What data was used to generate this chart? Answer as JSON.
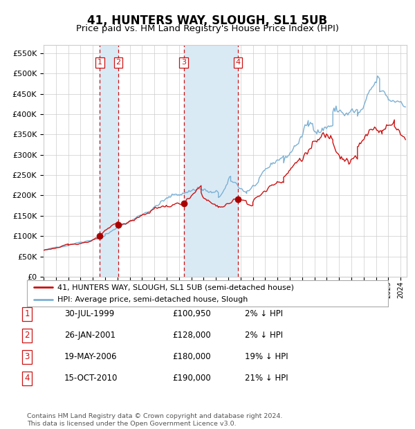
{
  "title": "41, HUNTERS WAY, SLOUGH, SL1 5UB",
  "subtitle": "Price paid vs. HM Land Registry's House Price Index (HPI)",
  "title_fontsize": 12,
  "subtitle_fontsize": 9.5,
  "ylabel_ticks": [
    "£0",
    "£50K",
    "£100K",
    "£150K",
    "£200K",
    "£250K",
    "£300K",
    "£350K",
    "£400K",
    "£450K",
    "£500K",
    "£550K"
  ],
  "ylabel_values": [
    0,
    50000,
    100000,
    150000,
    200000,
    250000,
    300000,
    350000,
    400000,
    450000,
    500000,
    550000
  ],
  "ylim": [
    0,
    570000
  ],
  "xlim_start": 1995.0,
  "xlim_end": 2024.5,
  "hpi_color": "#7ab0d4",
  "price_color": "#cc1111",
  "sale_marker_color": "#aa0000",
  "vline_color": "#cc1111",
  "shade_color": "#daeaf5",
  "grid_color": "#cccccc",
  "background_color": "#ffffff",
  "sales": [
    {
      "label": "1",
      "date_num": 1999.57,
      "price": 100950,
      "date_str": "30-JUL-1999",
      "pct": "2%",
      "dir": "↓"
    },
    {
      "label": "2",
      "date_num": 2001.07,
      "price": 128000,
      "date_str": "26-JAN-2001",
      "pct": "2%",
      "dir": "↓"
    },
    {
      "label": "3",
      "date_num": 2006.38,
      "price": 180000,
      "date_str": "19-MAY-2006",
      "pct": "19%",
      "dir": "↓"
    },
    {
      "label": "4",
      "date_num": 2010.79,
      "price": 190000,
      "date_str": "15-OCT-2010",
      "pct": "21%",
      "dir": "↓"
    }
  ],
  "legend_line1": "41, HUNTERS WAY, SLOUGH, SL1 5UB (semi-detached house)",
  "legend_line2": "HPI: Average price, semi-detached house, Slough",
  "footnote": "Contains HM Land Registry data © Crown copyright and database right 2024.\nThis data is licensed under the Open Government Licence v3.0.",
  "table_rows": [
    [
      "1",
      "30-JUL-1999",
      "£100,950",
      "2% ↓ HPI"
    ],
    [
      "2",
      "26-JAN-2001",
      "£128,000",
      "2% ↓ HPI"
    ],
    [
      "3",
      "19-MAY-2006",
      "£180,000",
      "19% ↓ HPI"
    ],
    [
      "4",
      "15-OCT-2010",
      "£190,000",
      "21% ↓ HPI"
    ]
  ]
}
